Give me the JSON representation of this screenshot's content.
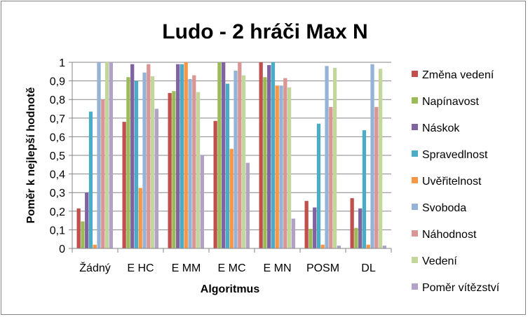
{
  "chart_data": {
    "type": "bar",
    "title": "Ludo - 2 hráči Max N",
    "xlabel": "Algoritmus",
    "ylabel": "Poměr k nejlepší hodnotě",
    "ylim": [
      0,
      1
    ],
    "yticks": [
      "0",
      "0,1",
      "0,2",
      "0,3",
      "0,4",
      "0,5",
      "0,6",
      "0,7",
      "0,8",
      "0,9",
      "1"
    ],
    "grid": true,
    "legend_position": "right",
    "categories": [
      "Žádný",
      "E HC",
      "E MM",
      "E MC",
      "E MN",
      "POSM",
      "DL"
    ],
    "series": [
      {
        "name": "Změna vedení",
        "color": "#C0504D",
        "values": [
          0.215,
          0.68,
          0.835,
          0.685,
          1.0,
          0.255,
          0.27
        ]
      },
      {
        "name": "Napínavost",
        "color": "#9BBB59",
        "values": [
          0.145,
          0.92,
          0.845,
          1.0,
          0.92,
          0.105,
          0.11
        ]
      },
      {
        "name": "Náskok",
        "color": "#8064A2",
        "values": [
          0.3,
          0.99,
          0.99,
          1.0,
          0.985,
          0.22,
          0.215
        ]
      },
      {
        "name": "Spravedlnost",
        "color": "#4BACC6",
        "values": [
          0.735,
          0.9,
          0.99,
          0.885,
          1.0,
          0.67,
          0.635
        ]
      },
      {
        "name": "Uvěřitelnost",
        "color": "#F79646",
        "values": [
          0.02,
          0.325,
          1.0,
          0.535,
          0.875,
          0.02,
          0.02
        ]
      },
      {
        "name": "Svoboda",
        "color": "#95B3D7",
        "values": [
          1.0,
          0.945,
          0.91,
          0.955,
          0.875,
          0.98,
          0.99
        ]
      },
      {
        "name": "Náhodnost",
        "color": "#D99694",
        "values": [
          0.8,
          0.99,
          0.93,
          1.0,
          0.915,
          0.76,
          0.76
        ]
      },
      {
        "name": "Vedení",
        "color": "#C3D69B",
        "values": [
          1.0,
          0.925,
          0.84,
          0.93,
          0.865,
          0.97,
          0.965
        ]
      },
      {
        "name": "Poměr vítězství",
        "color": "#B3A2C7",
        "values": [
          1.0,
          0.75,
          0.5,
          0.46,
          0.16,
          0.015,
          0.015
        ]
      }
    ]
  }
}
